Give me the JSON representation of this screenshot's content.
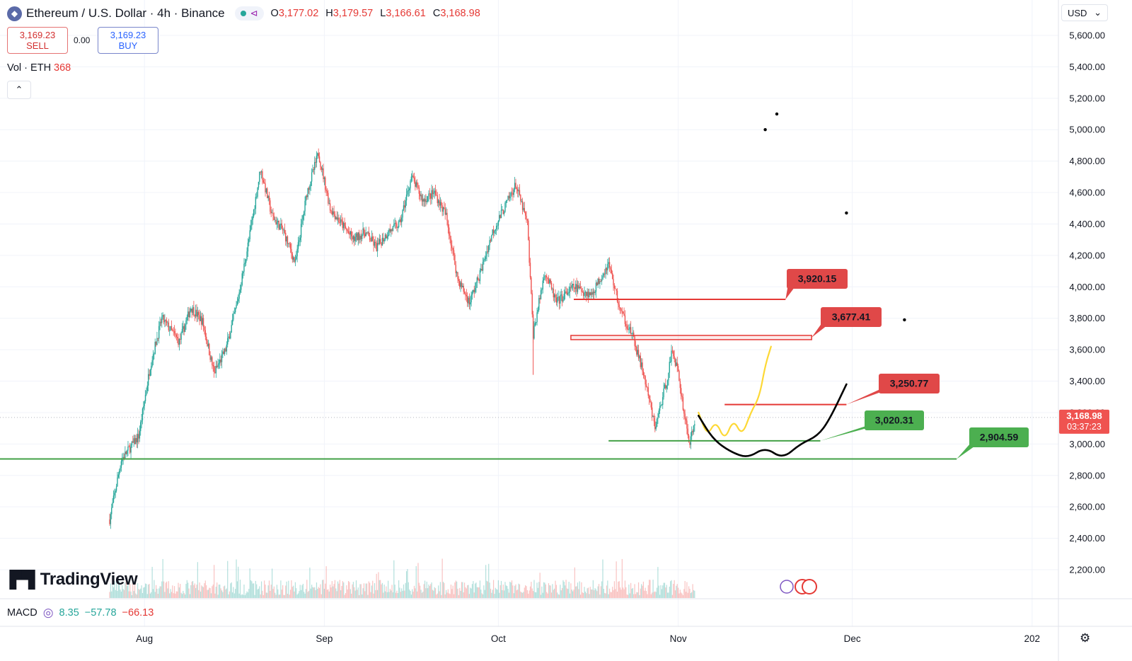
{
  "header": {
    "symbol_title": "Ethereum / U.S. Dollar · 4h · Binance",
    "ohlc": [
      {
        "key": "O",
        "value": "3,177.02"
      },
      {
        "key": "H",
        "value": "3,179.57"
      },
      {
        "key": "L",
        "value": "3,166.61"
      },
      {
        "key": "C",
        "value": "3,168.98"
      }
    ]
  },
  "trade": {
    "sell_price": "3,169.23",
    "sell_label": "SELL",
    "spread": "0.00",
    "buy_price": "3,169.23",
    "buy_label": "BUY"
  },
  "volume": {
    "label": "Vol · ETH",
    "value": "368"
  },
  "currency": {
    "value": "USD"
  },
  "macd": {
    "label": "MACD",
    "v1": "8.35",
    "v2": "−57.78",
    "v3": "−66.13"
  },
  "brand": {
    "name": "TradingView"
  },
  "price_tag": {
    "price": "3,168.98",
    "countdown": "03:37:23"
  },
  "icons": {
    "logo": "ethereum-logo-icon",
    "share": "share-icon",
    "collapse": "chevron-up-icon",
    "currency": "chevron-down-icon",
    "settings": "gear-icon"
  },
  "chart_data": {
    "type": "candlestick",
    "symbol": "ETHUSD",
    "timeframe": "4h",
    "y_ticks": [
      5600,
      5400,
      5200,
      5000,
      4800,
      4600,
      4400,
      4200,
      4000,
      3800,
      3600,
      3400,
      3200,
      3000,
      2800,
      2600,
      2400,
      2200
    ],
    "ylim": [
      2060,
      5700
    ],
    "x_ticks": [
      {
        "label": "Aug",
        "t": 6
      },
      {
        "label": "Sep",
        "t": 37
      },
      {
        "label": "Oct",
        "t": 67
      },
      {
        "label": "Nov",
        "t": 98
      },
      {
        "label": "Dec",
        "t": 128
      },
      {
        "label": "202",
        "t": 159
      }
    ],
    "price_path": [
      [
        0,
        2520
      ],
      [
        2,
        2900
      ],
      [
        5,
        3050
      ],
      [
        7,
        3500
      ],
      [
        9,
        3800
      ],
      [
        12,
        3650
      ],
      [
        14,
        3870
      ],
      [
        16,
        3780
      ],
      [
        18,
        3450
      ],
      [
        20,
        3600
      ],
      [
        22,
        3900
      ],
      [
        24,
        4300
      ],
      [
        26,
        4750
      ],
      [
        28,
        4450
      ],
      [
        30,
        4350
      ],
      [
        32,
        4150
      ],
      [
        34,
        4600
      ],
      [
        36,
        4850
      ],
      [
        38,
        4500
      ],
      [
        40,
        4400
      ],
      [
        42,
        4300
      ],
      [
        44,
        4350
      ],
      [
        46,
        4250
      ],
      [
        48,
        4350
      ],
      [
        50,
        4400
      ],
      [
        52,
        4700
      ],
      [
        54,
        4550
      ],
      [
        56,
        4600
      ],
      [
        58,
        4450
      ],
      [
        60,
        4050
      ],
      [
        62,
        3900
      ],
      [
        64,
        4100
      ],
      [
        66,
        4350
      ],
      [
        68,
        4500
      ],
      [
        70,
        4650
      ],
      [
        72,
        4400
      ],
      [
        73,
        3700
      ],
      [
        75,
        4100
      ],
      [
        77,
        3900
      ],
      [
        80,
        4000
      ],
      [
        83,
        3950
      ],
      [
        86,
        4150
      ],
      [
        88,
        3850
      ],
      [
        90,
        3700
      ],
      [
        92,
        3450
      ],
      [
        94,
        3100
      ],
      [
        96,
        3400
      ],
      [
        97,
        3600
      ],
      [
        98,
        3450
      ],
      [
        99,
        3200
      ],
      [
        100,
        3000
      ],
      [
        101,
        3168.98
      ]
    ],
    "current_price": 3168.98,
    "annotations": {
      "resistance": [
        {
          "label": "3,920.15",
          "value": 3920.15
        },
        {
          "label": "3,677.41",
          "value": 3677.41
        },
        {
          "label": "3,250.77",
          "value": 3250.77
        }
      ],
      "support": [
        {
          "label": "3,020.31",
          "value": 3020.31
        },
        {
          "label": "2,904.59",
          "value": 2904.59
        }
      ],
      "projections": [
        {
          "color": "#fdd835",
          "path": [
            [
              101.5,
              3200
            ],
            [
              103,
              3050
            ],
            [
              104.5,
              3150
            ],
            [
              106,
              3020
            ],
            [
              107.5,
              3160
            ],
            [
              109,
              3050
            ],
            [
              110.5,
              3200
            ],
            [
              112,
              3300
            ],
            [
              113,
              3500
            ],
            [
              114,
              3620
            ]
          ]
        },
        {
          "color": "#000000",
          "path": [
            [
              101.5,
              3180
            ],
            [
              104,
              3030
            ],
            [
              107,
              2950
            ],
            [
              110,
              2910
            ],
            [
              113,
              2980
            ],
            [
              116,
              2905
            ],
            [
              119,
              3000
            ],
            [
              122,
              3050
            ],
            [
              124,
              3150
            ],
            [
              127,
              3380
            ]
          ]
        }
      ],
      "points": [
        [
          113,
          5000
        ],
        [
          115,
          5100
        ],
        [
          127,
          4470
        ],
        [
          137,
          3790
        ]
      ]
    }
  }
}
